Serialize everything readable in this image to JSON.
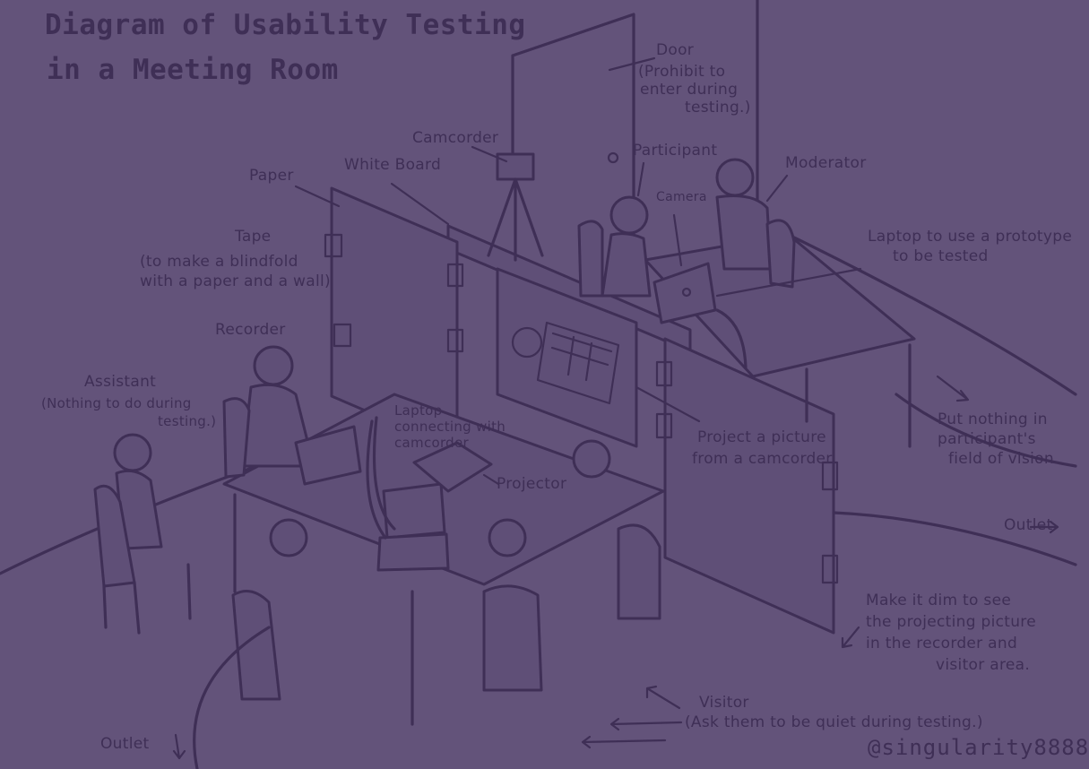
{
  "title": {
    "line1": "Diagram of Usability Testing",
    "line2": "in a Meeting Room"
  },
  "labels": {
    "door": "Door",
    "door_note_1": "(Prohibit to",
    "door_note_2": "enter during",
    "door_note_3": "testing.)",
    "camcorder": "Camcorder",
    "white_board": "White Board",
    "paper": "Paper",
    "participant": "Participant",
    "moderator": "Moderator",
    "camera": "Camera",
    "laptop_prototype_1": "Laptop to use a prototype",
    "laptop_prototype_2": "to be tested",
    "tape": "Tape",
    "tape_note_1": "(to make a blindfold",
    "tape_note_2": "with a paper and a wall)",
    "recorder": "Recorder",
    "assistant": "Assistant",
    "assistant_note_1": "(Nothing to do during",
    "assistant_note_2": "testing.)",
    "laptop_camcorder_1": "Laptop",
    "laptop_camcorder_2": "connecting with",
    "laptop_camcorder_3": "camcorder",
    "project_picture_1": "Project a picture",
    "project_picture_2": "from a camcorder.",
    "put_nothing_1": "Put nothing in",
    "put_nothing_2": "participant's",
    "put_nothing_3": "field of vision",
    "projector": "Projector",
    "outlet_right": "Outlet",
    "outlet_left": "Outlet",
    "make_dim_1": "Make it dim to see",
    "make_dim_2": "the projecting picture",
    "make_dim_3": "in the recorder and",
    "make_dim_4": "visitor area.",
    "visitor": "Visitor",
    "visitor_note": "(Ask them to be quiet during testing.)"
  },
  "credit": "@singularity8888",
  "colors": {
    "background": "#63537a",
    "ink": "#3f2f56"
  }
}
